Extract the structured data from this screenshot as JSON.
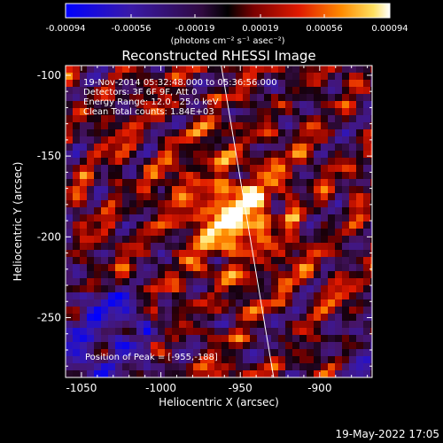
{
  "chart_data": {
    "type": "heatmap",
    "title": "Reconstructed RHESSI Image",
    "xlabel": "Heliocentric X (arcsec)",
    "ylabel": "Heliocentric Y (arcsec)",
    "xlim": [
      -1060,
      -867
    ],
    "ylim": [
      -287,
      -94
    ],
    "x_ticks": [
      "-1050",
      "-1000",
      "-950",
      "-900"
    ],
    "x_tick_values": [
      -1050,
      -1000,
      -950,
      -900
    ],
    "y_ticks": [
      "-100",
      "-150",
      "-200",
      "-250"
    ],
    "y_tick_values": [
      -100,
      -150,
      -200,
      -250
    ],
    "colorbar": {
      "ticks": [
        "-0.00094",
        "-0.00056",
        "-0.00019",
        "0.00019",
        "0.00056",
        "0.00094"
      ],
      "tick_values": [
        -0.00094,
        -0.00056,
        -0.00019,
        0.00019,
        0.00056,
        0.00094
      ],
      "range": [
        -0.00094,
        0.00094
      ],
      "unit_label": "(photons cm⁻² s⁻¹ asec⁻²)"
    },
    "annotations": {
      "time_range": "19-Nov-2014 05:32:48.000 to 05:36:56.000",
      "detectors": "Detectors: 3F 6F 9F, Att 0",
      "energy": "Energy Range: 12.0 - 25.0 keV",
      "method": "Clean    Total counts: 1.84E+03",
      "peak": "Position of Peak = [-955,-188]"
    },
    "peak": {
      "x": -955,
      "y": -188
    },
    "limb_line": {
      "x1": -962,
      "y1": -94,
      "x2": -929,
      "y2": -287
    },
    "grid": false,
    "colormap": "blue-purple-red-yellow-white"
  },
  "footer": {
    "timestamp": "19-May-2022 17:05"
  }
}
